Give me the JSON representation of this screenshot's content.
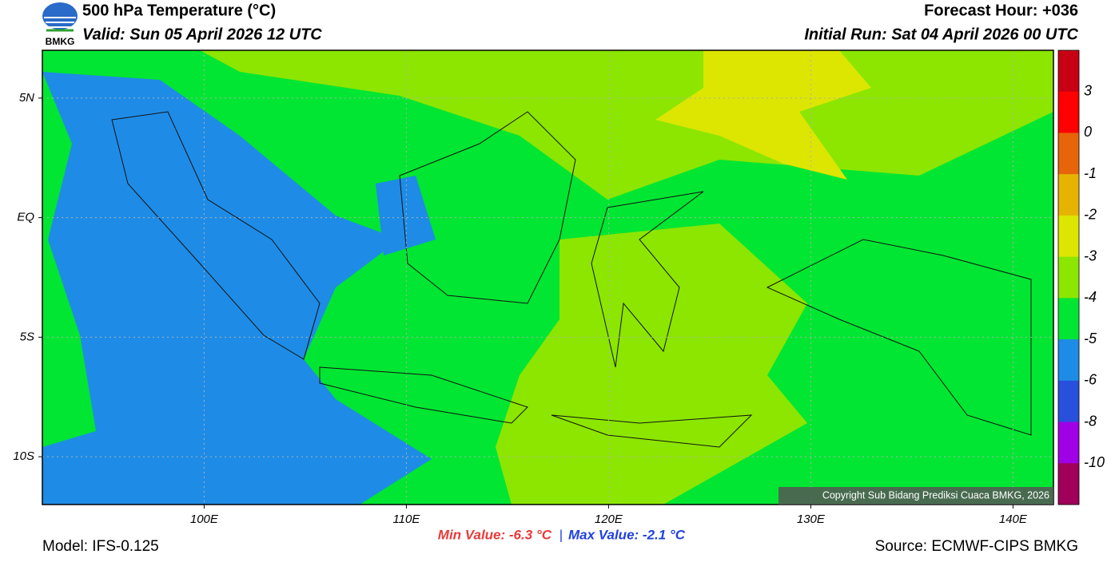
{
  "header": {
    "logo": "BMKG",
    "title": "500 hPa Temperature (°C)",
    "valid": "Valid: Sun 05 April 2026 12 UTC",
    "forecast_hour": "Forecast Hour: +036",
    "initial_run": "Initial Run: Sat 04 April 2026 00 UTC"
  },
  "map": {
    "type": "contour",
    "xlim": [
      92,
      142
    ],
    "ylim": [
      -12,
      7
    ],
    "xticks": [
      {
        "value": 100,
        "label": "100E"
      },
      {
        "value": 110,
        "label": "110E"
      },
      {
        "value": 120,
        "label": "120E"
      },
      {
        "value": 130,
        "label": "130E"
      },
      {
        "value": 140,
        "label": "140E"
      }
    ],
    "yticks": [
      {
        "value": 5,
        "label": "5N"
      },
      {
        "value": 0,
        "label": "EQ"
      },
      {
        "value": -5,
        "label": "5S"
      },
      {
        "value": -10,
        "label": "10S"
      }
    ],
    "grid": true,
    "copyright": "Copyright Sub Bidang Prediksi Cuaca BMKG, 2026"
  },
  "colorbar": {
    "colors": [
      "#c80014",
      "#ff0000",
      "#e8640a",
      "#e6b400",
      "#dce600",
      "#8ce600",
      "#00e632",
      "#1e8ce6",
      "#2850dc",
      "#a000e6",
      "#a0005a"
    ],
    "ticks": [
      3,
      0,
      -1,
      -2,
      -3,
      -4,
      -5,
      -6,
      -8,
      -10
    ]
  },
  "footer": {
    "min": "Min Value: -6.3 °C",
    "separator": "|",
    "max": "Max Value: -2.1 °C",
    "model": "Model: IFS-0.125",
    "source": "Source: ECMWF-CIPS BMKG"
  }
}
